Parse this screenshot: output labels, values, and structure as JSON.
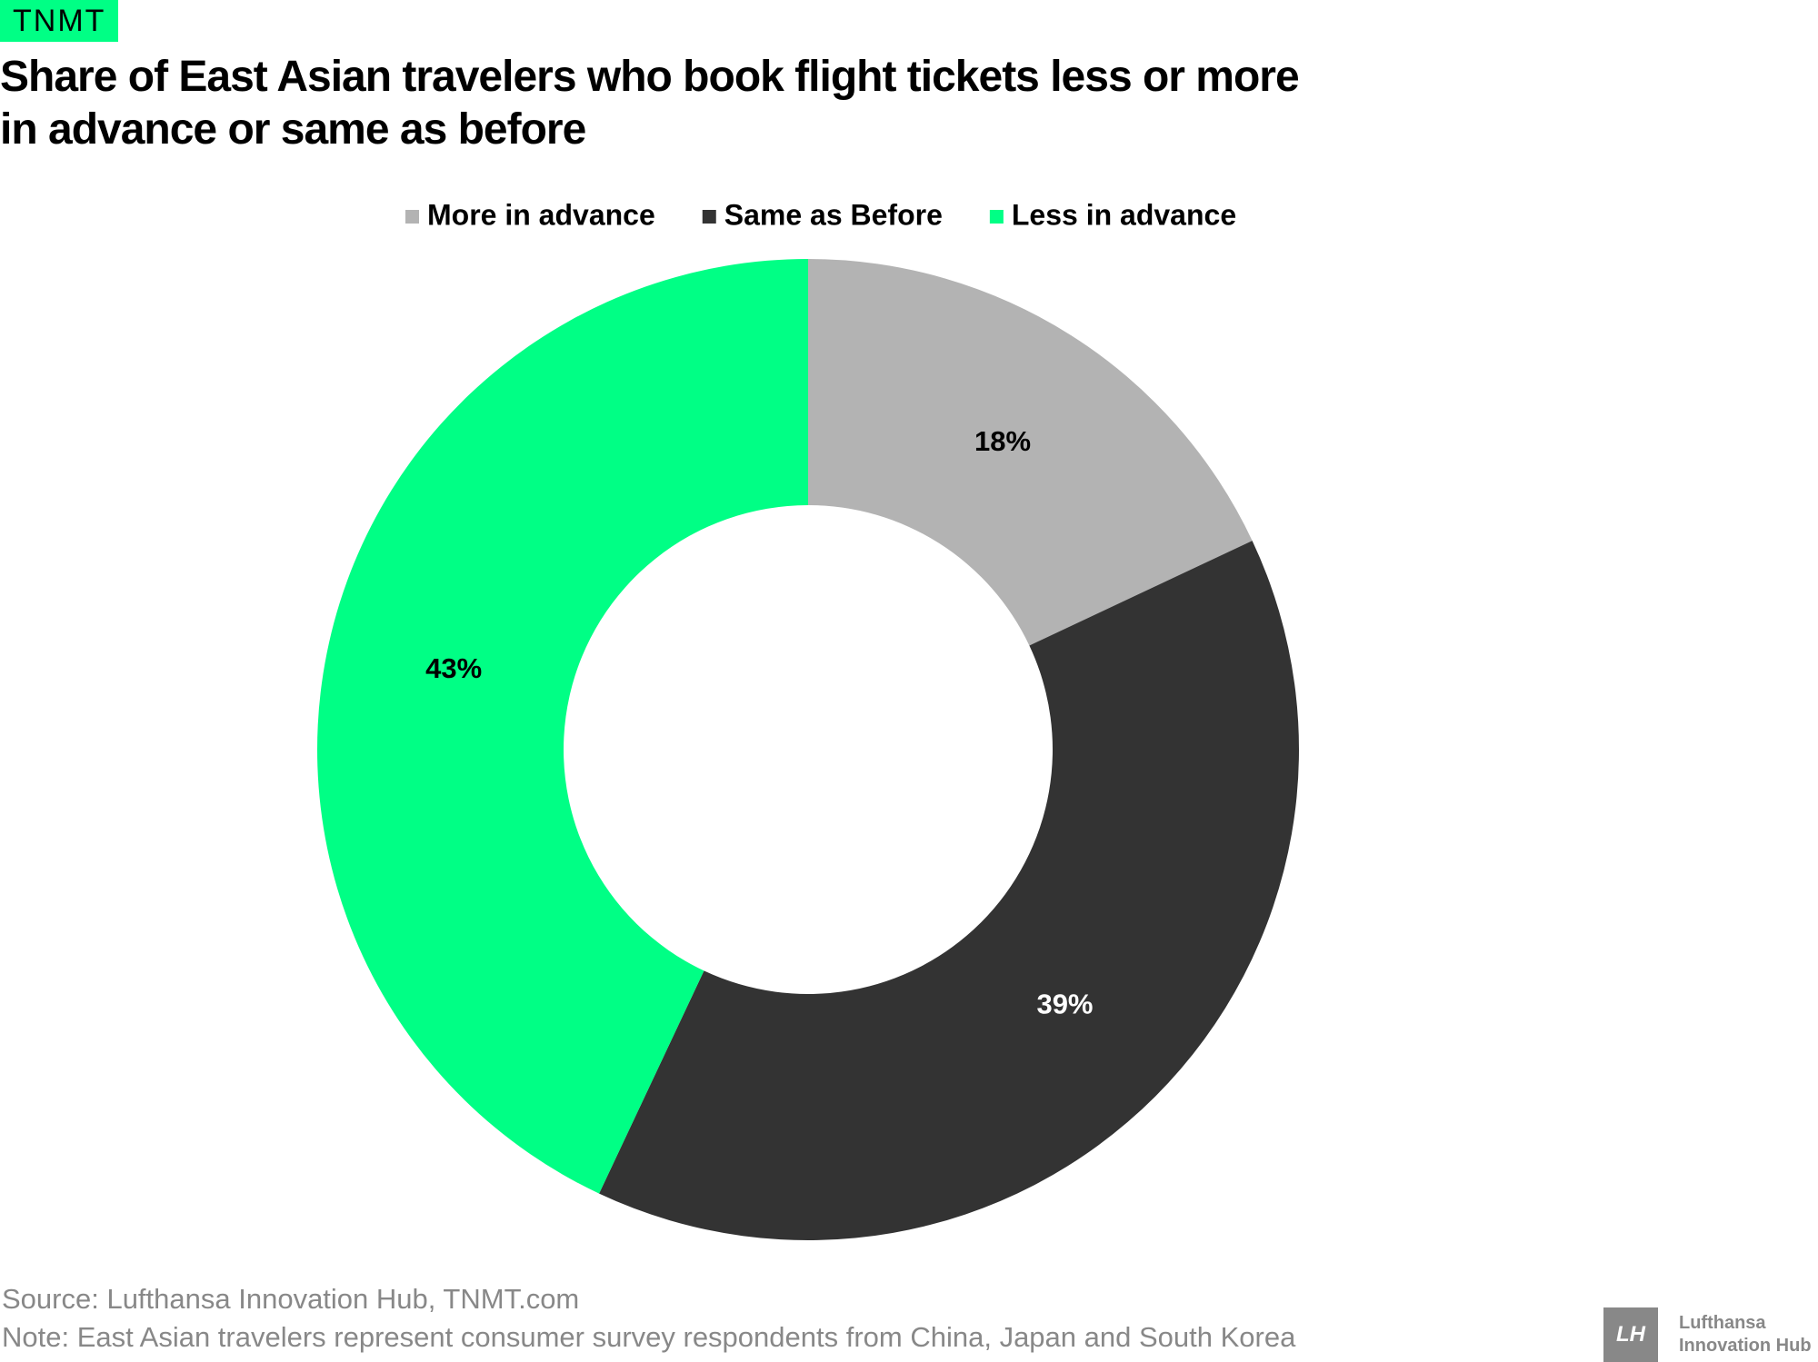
{
  "brand": "TNMT",
  "chart_data": {
    "type": "pie",
    "donut": true,
    "title": "Share of East Asian travelers who book flight tickets less or more in advance or same as before",
    "categories": [
      "More in advance",
      "Same as Before",
      "Less in advance"
    ],
    "values": [
      18,
      39,
      43
    ],
    "value_labels": [
      "18%",
      "39%",
      "43%"
    ],
    "colors": [
      "#b3b3b3",
      "#333333",
      "#00ff85"
    ],
    "legend": "top"
  },
  "footer": {
    "source": "Source: Lufthansa Innovation Hub, TNMT.com",
    "note": "Note: East Asian travelers represent consumer survey respondents from China, Japan and South Korea"
  },
  "logo": {
    "mark": "LH",
    "lines": [
      "Lufthansa",
      "Innovation Hub"
    ]
  }
}
